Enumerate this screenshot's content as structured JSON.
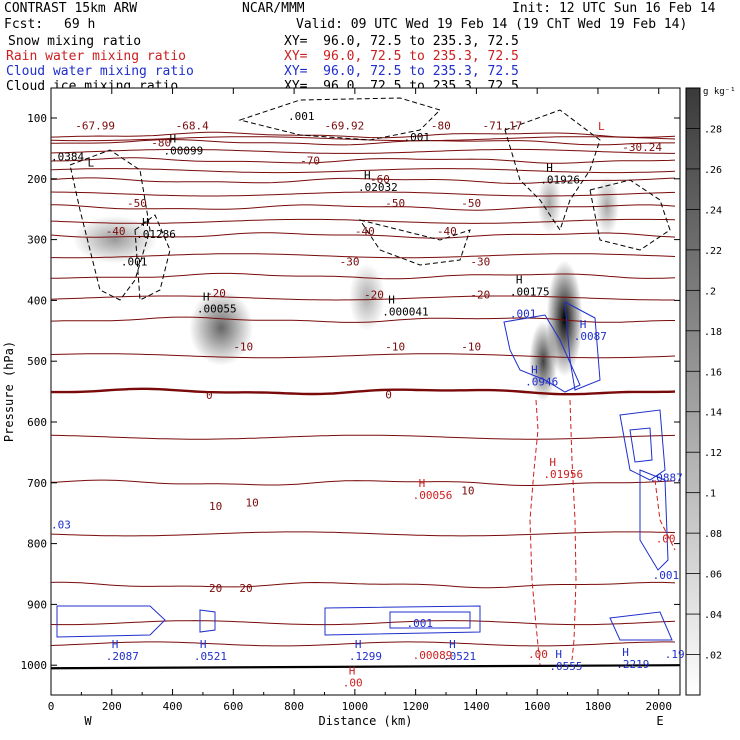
{
  "header": {
    "model": "CONTRAST 15km ARW",
    "org": "NCAR/MMM",
    "init": "Init: 12 UTC Sun 16 Feb 14",
    "fcst_label": "Fcst:",
    "fcst_value": "69 h",
    "valid": "Valid: 09 UTC Wed 19 Feb 14 (19 ChT Wed 19 Feb 14)",
    "fields": [
      {
        "name": "Snow mixing ratio",
        "xy": "XY=  96.0, 72.5 to 235.3, 72.5",
        "color": "#000000"
      },
      {
        "name": "Rain water mixing ratio",
        "xy": "XY=  96.0, 72.5 to 235.3, 72.5",
        "color": "#cc1f1f"
      },
      {
        "name": "Cloud water mixing ratio",
        "xy": "XY=  96.0, 72.5 to 235.3, 72.5",
        "color": "#1f2fcc"
      },
      {
        "name": "Cloud ice mixing ratio",
        "xy": "XY=  96.0, 72.5 to 235.3, 72.5",
        "color": "#000000"
      }
    ]
  },
  "chart_data": {
    "type": "cross-section",
    "xlabel": "Distance (km)",
    "ylabel": "Pressure (hPa)",
    "xlim": [
      0,
      2070
    ],
    "ylim": [
      80,
      1050
    ],
    "xticks": [
      "0",
      "200",
      "400",
      "600",
      "800",
      "1000",
      "1200",
      "1400",
      "1600",
      "1800",
      "2000"
    ],
    "yticks": [
      "100",
      "200",
      "300",
      "400",
      "500",
      "600",
      "700",
      "800",
      "900",
      "1000"
    ],
    "x_end_labels": {
      "left": "W",
      "right": "E"
    },
    "colorbar": {
      "unit": "g kg⁻¹",
      "ticks": [
        ".28",
        ".26",
        ".24",
        ".22",
        ".2",
        ".18",
        ".16",
        ".14",
        ".12",
        ".1",
        ".08",
        ".06",
        ".04",
        ".02"
      ]
    },
    "temperature_isotherms": [
      {
        "label": "-80",
        "p": 128,
        "bold": false
      },
      {
        "label": "-70",
        "p": 140,
        "bold": false
      },
      {
        "label": "-60",
        "p": 170,
        "bold": false
      },
      {
        "label": "-50",
        "p": 203,
        "bold": false
      },
      {
        "label": "-40",
        "p": 247,
        "bold": false
      },
      {
        "label": "-30",
        "p": 293,
        "bold": false
      },
      {
        "label": "-20",
        "p": 360,
        "bold": false
      },
      {
        "label": "-10",
        "p": 432,
        "bold": false
      },
      {
        "label": "0",
        "p": 550,
        "bold": true
      },
      {
        "label": "10",
        "p": 700,
        "bold": false
      },
      {
        "label": "20",
        "p": 868,
        "bold": false
      }
    ],
    "temperature_labels": [
      {
        "text": "-67.99",
        "x": 80,
        "p": 112
      },
      {
        "text": "-68.4",
        "x": 410,
        "p": 112
      },
      {
        "text": "-69.92",
        "x": 900,
        "p": 112
      },
      {
        "text": "-80",
        "x": 1250,
        "p": 112
      },
      {
        "text": "-71.17",
        "x": 1420,
        "p": 112
      },
      {
        "text": "-80",
        "x": 330,
        "p": 140
      },
      {
        "text": "-70",
        "x": 820,
        "p": 170
      },
      {
        "text": "-60",
        "x": 1050,
        "p": 200
      },
      {
        "text": "-50",
        "x": 250,
        "p": 240
      },
      {
        "text": "-50",
        "x": 1100,
        "p": 240
      },
      {
        "text": "-50",
        "x": 1350,
        "p": 240
      },
      {
        "text": "-40",
        "x": 180,
        "p": 286
      },
      {
        "text": "-40",
        "x": 1000,
        "p": 286
      },
      {
        "text": "-40",
        "x": 1270,
        "p": 286
      },
      {
        "text": "-30",
        "x": 950,
        "p": 336
      },
      {
        "text": "-30",
        "x": 1380,
        "p": 336
      },
      {
        "text": "-20",
        "x": 510,
        "p": 388
      },
      {
        "text": "-20",
        "x": 1030,
        "p": 390
      },
      {
        "text": "-20",
        "x": 1380,
        "p": 390
      },
      {
        "text": "-10",
        "x": 600,
        "p": 476
      },
      {
        "text": "-10",
        "x": 1100,
        "p": 476
      },
      {
        "text": "-10",
        "x": 1350,
        "p": 476
      },
      {
        "text": "0",
        "x": 510,
        "p": 556
      },
      {
        "text": "0",
        "x": 1100,
        "p": 555
      },
      {
        "text": "10",
        "x": 1350,
        "p": 713
      },
      {
        "text": "10",
        "x": 520,
        "p": 738
      },
      {
        "text": "10",
        "x": 640,
        "p": 732
      },
      {
        "text": "20",
        "x": 520,
        "p": 873
      },
      {
        "text": "20",
        "x": 620,
        "p": 873
      },
      {
        "text": "-30.24",
        "x": 1880,
        "p": 148
      }
    ],
    "extrema": [
      {
        "text": "H",
        "value": ".00099",
        "x": 390,
        "p": 140,
        "color": "#000000"
      },
      {
        "text": "H",
        "value": ".02032",
        "x": 1030,
        "p": 200,
        "color": "#000000"
      },
      {
        "text": "H",
        "value": ".01926",
        "x": 1630,
        "p": 188,
        "color": "#000000"
      },
      {
        "text": "H",
        "value": ".01286",
        "x": 300,
        "p": 278,
        "color": "#000000"
      },
      {
        "text": "H",
        "value": ".00055",
        "x": 500,
        "p": 400,
        "color": "#000000"
      },
      {
        "text": "H",
        "value": ".00175",
        "x": 1530,
        "p": 372,
        "color": "#000000"
      },
      {
        "text": "H",
        "value": ".000041",
        "x": 1110,
        "p": 405,
        "color": "#000000"
      },
      {
        "text": "H",
        "value": ".01956",
        "x": 1640,
        "p": 672,
        "color": "#cc1f1f"
      },
      {
        "text": "H",
        "value": ".00056",
        "x": 1210,
        "p": 707,
        "color": "#cc1f1f"
      },
      {
        "text": "H",
        "value": ".0946",
        "x": 1580,
        "p": 520,
        "color": "#1f2fcc"
      },
      {
        "text": "H",
        "value": ".0087",
        "x": 1740,
        "p": 445,
        "color": "#1f2fcc"
      },
      {
        "text": "H",
        "value": ".2087",
        "x": 200,
        "p": 972,
        "color": "#1f2fcc"
      },
      {
        "text": "H",
        "value": ".0521",
        "x": 490,
        "p": 972,
        "color": "#1f2fcc"
      },
      {
        "text": "H",
        "value": ".1299",
        "x": 1000,
        "p": 972,
        "color": "#1f2fcc"
      },
      {
        "text": "H",
        "value": ".0521",
        "x": 1310,
        "p": 972,
        "color": "#1f2fcc"
      },
      {
        "text": "H",
        "value": ".0555",
        "x": 1660,
        "p": 988,
        "color": "#1f2fcc"
      },
      {
        "text": "H",
        "value": ".2219",
        "x": 1880,
        "p": 985,
        "color": "#1f2fcc"
      },
      {
        "text": "H",
        "value": ".00",
        "x": 980,
        "p": 1015,
        "color": "#cc1f1f"
      }
    ],
    "misc_labels": [
      {
        "text": ".001",
        "x": 780,
        "p": 103,
        "color": "#000000"
      },
      {
        "text": ".001",
        "x": 1160,
        "p": 138,
        "color": "#000000"
      },
      {
        "text": ".001",
        "x": 230,
        "p": 343,
        "color": "#000000"
      },
      {
        "text": ".0384",
        "x": 0,
        "p": 170,
        "color": "#000000"
      },
      {
        "text": "L",
        "x": 120,
        "p": 180,
        "color": "#000000"
      },
      {
        "text": "L",
        "x": 1800,
        "p": 120,
        "color": "#cc1f1f"
      },
      {
        "text": ".001",
        "x": 1510,
        "p": 428,
        "color": "#1f2fcc"
      },
      {
        "text": ".03",
        "x": 0,
        "p": 775,
        "color": "#1f2fcc"
      },
      {
        "text": ".001",
        "x": 1980,
        "p": 858,
        "color": "#1f2fcc"
      },
      {
        "text": ".001",
        "x": 1170,
        "p": 937,
        "color": "#1f2fcc"
      },
      {
        "text": ".00089",
        "x": 1190,
        "p": 990,
        "color": "#cc1f1f"
      },
      {
        "text": ".00",
        "x": 1570,
        "p": 988,
        "color": "#cc1f1f"
      },
      {
        "text": ".19",
        "x": 2020,
        "p": 988,
        "color": "#1f2fcc"
      },
      {
        "text": ".0887",
        "x": 1970,
        "p": 698,
        "color": "#1f2fcc"
      },
      {
        "text": ".00",
        "x": 1990,
        "p": 798,
        "color": "#cc1f1f"
      }
    ],
    "snow_maxima_g_per_kg": [
      {
        "x": 210,
        "p": 300,
        "value": 0.06
      },
      {
        "x": 560,
        "p": 445,
        "value": 0.14
      },
      {
        "x": 1040,
        "p": 395,
        "value": 0.03
      },
      {
        "x": 1620,
        "p": 500,
        "value": 0.2
      },
      {
        "x": 1690,
        "p": 430,
        "value": 0.3
      },
      {
        "x": 1640,
        "p": 240,
        "value": 0.04
      },
      {
        "x": 1830,
        "p": 245,
        "value": 0.04
      }
    ]
  }
}
